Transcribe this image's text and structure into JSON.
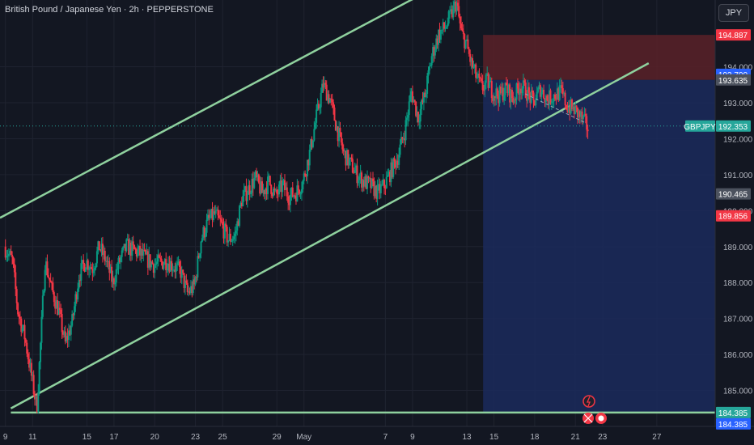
{
  "header": {
    "title": "British Pound / Japanese Yen · 2h · PEPPERSTONE"
  },
  "currency_button": "JPY",
  "colors": {
    "background": "#131722",
    "bull": "#089981",
    "bear": "#f23645",
    "channel": "#8fd19e",
    "stop_zone": "#5b2128",
    "target_zone": "#1b2a5c",
    "price_label": "#26a69a",
    "red_label": "#f23645",
    "blue_label": "#2962ff",
    "grey_label": "#4c525e"
  },
  "chart_data": {
    "type": "candlestick",
    "symbol": "GBPJPY",
    "timeframe": "2h",
    "y_axis": {
      "ticks": [
        "194.000",
        "193.000",
        "192.000",
        "191.000",
        "190.000",
        "189.000",
        "188.000",
        "187.000",
        "186.000",
        "185.000"
      ],
      "tick_values": [
        194,
        193,
        192,
        191,
        190,
        189,
        188,
        187,
        186,
        185
      ],
      "range": [
        184.0,
        195.7
      ]
    },
    "x_axis": {
      "ticks": [
        "9",
        "11",
        "15",
        "17",
        "20",
        "23",
        "25",
        "29",
        "May",
        "7",
        "9",
        "13",
        "15",
        "18",
        "21",
        "23",
        "27"
      ],
      "tick_days": [
        0,
        2,
        6,
        8,
        11,
        14,
        16,
        20,
        22,
        28,
        30,
        34,
        36,
        39,
        42,
        44,
        48
      ],
      "range_days": [
        -0.4,
        52.3
      ]
    },
    "price_labels": [
      {
        "text": "194.887",
        "value": 194.887,
        "color": "#f23645"
      },
      {
        "text": "193.790",
        "value": 193.79,
        "color": "#2962ff"
      },
      {
        "text": "193.635",
        "value": 193.635,
        "color": "#4c525e"
      },
      {
        "text": "192.353",
        "value": 192.353,
        "color": "#26a69a",
        "tag": "GBPJPY"
      },
      {
        "text": "190.465",
        "value": 190.465,
        "color": "#4c525e"
      },
      {
        "text": "189.856",
        "value": 189.856,
        "color": "#f23645"
      },
      {
        "text": "184.385",
        "value": 184.385,
        "color": "#26a69a"
      },
      {
        "text": "184.385",
        "value": 184.385,
        "color": "#2962ff"
      }
    ],
    "current_price": 192.353,
    "support_level": 184.385,
    "position": {
      "type": "short",
      "start_day": 35.2,
      "stop": 194.887,
      "entry": 193.635,
      "target": 184.385
    },
    "channel": {
      "upper": [
        [
          -0.4,
          189.8
        ],
        [
          30.6,
          196.0
        ]
      ],
      "lower": [
        [
          0.4,
          184.5
        ],
        [
          47.4,
          194.1
        ]
      ]
    },
    "path": [
      [
        0,
        189.0
      ],
      [
        0.6,
        188.6
      ],
      [
        1.0,
        187.2
      ],
      [
        1.5,
        186.5
      ],
      [
        2.0,
        185.4
      ],
      [
        2.4,
        184.5
      ],
      [
        2.7,
        186.5
      ],
      [
        3.0,
        188.6
      ],
      [
        3.5,
        187.8
      ],
      [
        4.0,
        187.2
      ],
      [
        4.5,
        186.3
      ],
      [
        5.0,
        186.9
      ],
      [
        5.5,
        188.2
      ],
      [
        6.0,
        188.6
      ],
      [
        6.5,
        188.4
      ],
      [
        7.0,
        189.0
      ],
      [
        7.5,
        188.6
      ],
      [
        8.0,
        188.0
      ],
      [
        8.5,
        188.6
      ],
      [
        9.0,
        189.0
      ],
      [
        10.0,
        188.8
      ],
      [
        11.0,
        188.5
      ],
      [
        12.0,
        188.6
      ],
      [
        13.0,
        188.3
      ],
      [
        13.5,
        187.7
      ],
      [
        14.0,
        187.9
      ],
      [
        14.5,
        189.2
      ],
      [
        15.0,
        189.7
      ],
      [
        15.5,
        189.9
      ],
      [
        16.0,
        189.6
      ],
      [
        16.5,
        189.2
      ],
      [
        17.0,
        189.3
      ],
      [
        17.5,
        190.3
      ],
      [
        18.0,
        190.6
      ],
      [
        18.5,
        190.9
      ],
      [
        19.0,
        190.5
      ],
      [
        19.5,
        190.8
      ],
      [
        20.0,
        190.4
      ],
      [
        20.5,
        190.7
      ],
      [
        21.0,
        190.4
      ],
      [
        21.5,
        190.5
      ],
      [
        22.0,
        190.8
      ],
      [
        22.5,
        191.6
      ],
      [
        23.0,
        192.6
      ],
      [
        23.5,
        193.5
      ],
      [
        24.0,
        193.1
      ],
      [
        24.5,
        192.3
      ],
      [
        25.0,
        191.6
      ],
      [
        25.5,
        191.3
      ],
      [
        26.0,
        191.0
      ],
      [
        26.5,
        190.8
      ],
      [
        27.0,
        190.7
      ],
      [
        27.5,
        190.5
      ],
      [
        28.0,
        190.7
      ],
      [
        28.5,
        191.1
      ],
      [
        29.0,
        191.5
      ],
      [
        29.5,
        192.2
      ],
      [
        30.0,
        193.3
      ],
      [
        30.5,
        192.6
      ],
      [
        31.0,
        193.2
      ],
      [
        31.5,
        194.3
      ],
      [
        32.0,
        194.9
      ],
      [
        32.5,
        195.1
      ],
      [
        33.0,
        195.5
      ],
      [
        33.3,
        195.8
      ],
      [
        33.7,
        194.9
      ],
      [
        34.0,
        194.7
      ],
      [
        34.4,
        194.1
      ],
      [
        34.8,
        193.7
      ],
      [
        35.2,
        193.4
      ],
      [
        35.6,
        193.6
      ],
      [
        36.0,
        193.3
      ],
      [
        36.5,
        193.2
      ],
      [
        37.0,
        193.4
      ],
      [
        37.5,
        193.1
      ],
      [
        38.0,
        193.5
      ],
      [
        38.5,
        193.3
      ],
      [
        39.0,
        193.0
      ],
      [
        39.5,
        193.4
      ],
      [
        40.0,
        193.1
      ],
      [
        40.5,
        193.2
      ],
      [
        41.0,
        193.3
      ],
      [
        41.5,
        192.9
      ],
      [
        42.0,
        192.8
      ],
      [
        42.5,
        192.6
      ],
      [
        43.0,
        192.3
      ]
    ]
  }
}
